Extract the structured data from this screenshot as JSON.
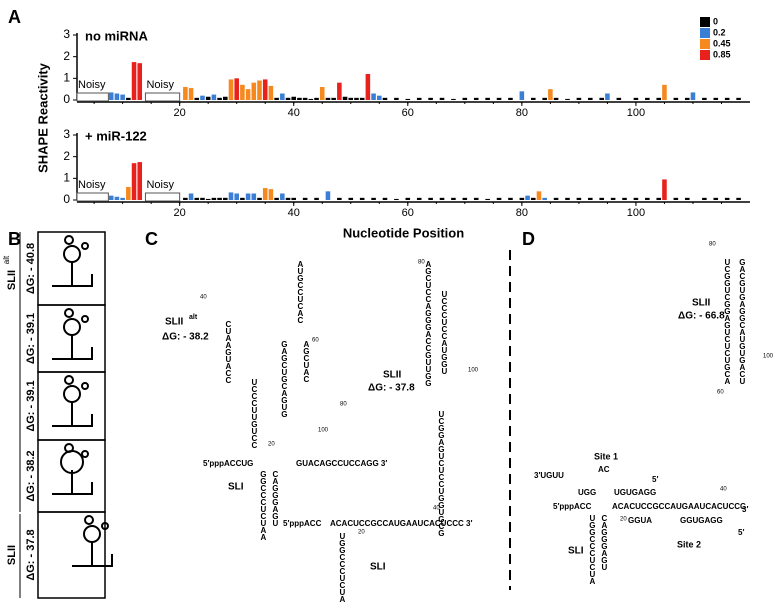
{
  "panel_labels": [
    "A",
    "B",
    "C",
    "D"
  ],
  "chart_data": [
    {
      "type": "bar",
      "subtitle": "no miRNA",
      "ylabel": "SHAPE Reactivity",
      "xlim": [
        2,
        120
      ],
      "ylim": [
        0,
        3
      ],
      "xticks": [
        20,
        40,
        60,
        80,
        100
      ],
      "yticks": [
        0,
        1,
        2,
        3
      ],
      "noisy": [
        {
          "label": "Noisy",
          "range": [
            2,
            7.5
          ]
        },
        {
          "label": "Noisy",
          "range": [
            14,
            20
          ]
        }
      ],
      "series": [
        {
          "name": "0",
          "color": "#000000",
          "x": [
            11,
            23,
            25,
            27,
            28,
            37,
            39,
            40,
            41,
            42,
            43,
            44,
            46,
            47,
            49,
            50,
            51,
            52,
            56,
            58,
            60,
            62,
            64,
            66,
            68,
            70,
            72,
            74,
            76,
            78,
            82,
            84,
            86,
            88,
            90,
            92,
            94,
            97,
            100,
            102,
            104,
            107,
            109,
            112,
            114,
            116,
            118
          ],
          "values": [
            0.1,
            0.1,
            0.15,
            0.1,
            0.15,
            0.1,
            0.1,
            0.15,
            0.1,
            0.1,
            0.05,
            0.1,
            0.1,
            0.1,
            0.15,
            0.1,
            0.1,
            0.1,
            0.1,
            0.1,
            0.05,
            0.1,
            0.1,
            0.1,
            0.05,
            0.1,
            0.1,
            0.1,
            0.1,
            0.1,
            0.1,
            0.1,
            0.1,
            0.05,
            0.1,
            0.1,
            0.1,
            0.1,
            0.1,
            0.1,
            0.1,
            0.1,
            0.1,
            0.1,
            0.1,
            0.1,
            0.1
          ]
        },
        {
          "name": "0.2",
          "color": "#3a7fd5",
          "x": [
            8,
            9,
            10,
            24,
            26,
            38,
            54,
            55,
            80,
            95,
            110
          ],
          "values": [
            0.35,
            0.3,
            0.25,
            0.2,
            0.25,
            0.3,
            0.3,
            0.2,
            0.4,
            0.3,
            0.35
          ]
        },
        {
          "name": "0.45",
          "color": "#f5891f",
          "x": [
            21,
            22,
            29,
            31,
            32,
            33,
            34,
            36,
            45,
            85,
            105
          ],
          "values": [
            0.6,
            0.55,
            0.95,
            0.7,
            0.5,
            0.8,
            0.9,
            0.65,
            0.6,
            0.5,
            0.7
          ]
        },
        {
          "name": "0.85",
          "color": "#e8211d",
          "x": [
            12,
            13,
            30,
            35,
            48,
            53
          ],
          "values": [
            1.75,
            1.7,
            1.0,
            0.95,
            0.8,
            1.2
          ]
        }
      ]
    },
    {
      "type": "bar",
      "subtitle": "+ miR-122",
      "xlabel": "Nucleotide Position",
      "xlim": [
        2,
        120
      ],
      "ylim": [
        0,
        3
      ],
      "xticks": [
        20,
        40,
        60,
        80,
        100
      ],
      "yticks": [
        0,
        1,
        2,
        3
      ],
      "noisy": [
        {
          "label": "Noisy",
          "range": [
            2,
            7.5
          ]
        },
        {
          "label": "Noisy",
          "range": [
            14,
            20
          ]
        }
      ],
      "series": [
        {
          "color": "#000000",
          "x": [
            21,
            23,
            24,
            25,
            26,
            27,
            28,
            31,
            34,
            37,
            39,
            40,
            42,
            44,
            48,
            50,
            52,
            54,
            56,
            58,
            60,
            62,
            64,
            66,
            68,
            70,
            72,
            74,
            76,
            78,
            80,
            82,
            86,
            88,
            90,
            92,
            94,
            96,
            98,
            100,
            102,
            104,
            107,
            109,
            112,
            114,
            116,
            118
          ],
          "values": [
            0.1,
            0.1,
            0.1,
            0.05,
            0.1,
            0.1,
            0.1,
            0.1,
            0.1,
            0.1,
            0.1,
            0.1,
            0.1,
            0.1,
            0.1,
            0.1,
            0.1,
            0.1,
            0.1,
            0.05,
            0.1,
            0.1,
            0.1,
            0.1,
            0.1,
            0.1,
            0.1,
            0.05,
            0.1,
            0.1,
            0.1,
            0.1,
            0.1,
            0.1,
            0.1,
            0.1,
            0.1,
            0.1,
            0.1,
            0.1,
            0.1,
            0.1,
            0.1,
            0.1,
            0.1,
            0.1,
            0.1,
            0.1
          ]
        },
        {
          "color": "#3a7fd5",
          "x": [
            8,
            9,
            10,
            22,
            29,
            30,
            32,
            33,
            38,
            46,
            81,
            84
          ],
          "values": [
            0.2,
            0.15,
            0.1,
            0.3,
            0.35,
            0.3,
            0.3,
            0.3,
            0.3,
            0.4,
            0.2,
            0.1
          ]
        },
        {
          "color": "#f5891f",
          "x": [
            11,
            35,
            36,
            83
          ],
          "values": [
            0.6,
            0.55,
            0.5,
            0.4
          ]
        },
        {
          "color": "#e8211d",
          "x": [
            12,
            13,
            105
          ],
          "values": [
            1.7,
            1.75,
            0.95
          ]
        }
      ]
    }
  ],
  "panel_b": {
    "energies": [
      "ΔG: - 40.8",
      "ΔG: - 39.1",
      "ΔG: - 39.1",
      "ΔG: - 38.2",
      "ΔG: - 37.8"
    ],
    "group_alt": {
      "name": "SLII",
      "sup": "alt"
    },
    "group_slii": "SLII"
  },
  "panel_c": {
    "structures": [
      {
        "name": "SLII",
        "sup": "alt",
        "dg": "ΔG: - 38.2"
      },
      {
        "name": "SLII",
        "dg": "ΔG: - 37.8"
      }
    ],
    "sli": [
      "SLI",
      "SLI"
    ],
    "strands": [
      "5′pppACCUG",
      "GUACAGCCUCCAGG 3′",
      "GGCCCUCUAA",
      "CAGGGAGU",
      "CUAAGUACC",
      "UCCCUUGUCC",
      "GAGCUGCAGUG",
      "AGCUAC",
      "UCCCUCCAUGGU",
      "5′pppACC",
      "ACACUCCGCCAUGAAUCACUCCC 3′",
      "UGGCCCUCUA",
      "AGCUCCAGGGACCGUUGG",
      "UCGGAGUCUCCUGGUGCG",
      "AUGCCUCAC"
    ],
    "numbers": [
      "40",
      "60",
      "80",
      "100",
      "20",
      "80",
      "100",
      "40",
      "20"
    ]
  },
  "panel_d": {
    "structure": {
      "name": "SLII",
      "dg": "ΔG: - 66.8"
    },
    "sli": "SLI",
    "sites": [
      "Site 1",
      "Site 2"
    ],
    "strands": [
      "3′UGUU",
      "AC",
      "UGG",
      "UGUGAGG",
      "5′pppACC",
      "ACACUCCGCCAUGAAUCACUCCC",
      "3′",
      "GGUA",
      "GGUGAGG",
      "5′",
      "5′",
      "UGGCCCUCUA",
      "CAGGGAGU",
      "UCGGUCGGAGUCUCUGCA",
      "GACGUGAGGCAUGUGACU"
    ],
    "numbers": [
      "80",
      "100",
      "60",
      "40",
      "20"
    ]
  }
}
